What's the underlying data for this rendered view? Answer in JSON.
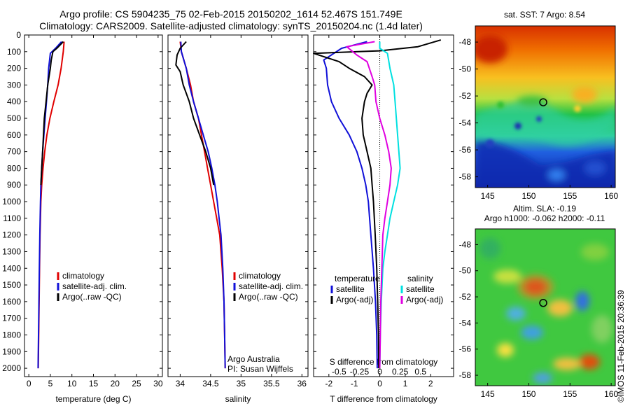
{
  "header": {
    "title_line1": "Argo profile: CS 5904235_75 02-Feb-2015 20150202_1614 52.467S 151.749E",
    "title_line2": "Climatology: CARS2009. Satellite-adjusted climatology: synTS_20150204.nc (1.4d later)"
  },
  "colors": {
    "climatology": "#e00000",
    "satellite": "#1010d8",
    "argo": "#000000",
    "sat_salinity": "#00e0e0",
    "argo_salinity": "#e000e0"
  },
  "chart_data": [
    {
      "id": "temperature",
      "type": "line",
      "xlabel": "temperature (deg C)",
      "ylabel": "",
      "xlim": [
        -1,
        31
      ],
      "ylim": [
        2050,
        0
      ],
      "xticks": [
        0,
        5,
        10,
        15,
        20,
        25,
        30
      ],
      "yticks": [
        0,
        100,
        200,
        300,
        400,
        500,
        600,
        700,
        800,
        900,
        1000,
        1100,
        1200,
        1300,
        1400,
        1500,
        1600,
        1700,
        1800,
        1900,
        2000
      ],
      "legend": [
        "climatology",
        "satellite-adj. clim.",
        "Argo(..raw -QC)"
      ],
      "series": [
        {
          "name": "climatology",
          "color": "#e00000",
          "points": [
            [
              8.2,
              40
            ],
            [
              8.0,
              100
            ],
            [
              7.5,
              200
            ],
            [
              6.8,
              300
            ],
            [
              5.8,
              400
            ],
            [
              4.9,
              500
            ],
            [
              4.2,
              600
            ],
            [
              3.7,
              700
            ],
            [
              3.3,
              800
            ],
            [
              3.0,
              900
            ],
            [
              2.8,
              1000
            ],
            [
              2.6,
              1200
            ],
            [
              2.5,
              1400
            ],
            [
              2.4,
              1600
            ],
            [
              2.3,
              1800
            ],
            [
              2.2,
              2000
            ]
          ]
        },
        {
          "name": "satellite-adj. clim.",
          "color": "#1010d8",
          "points": [
            [
              7.6,
              40
            ],
            [
              6.2,
              80
            ],
            [
              5.0,
              110
            ],
            [
              4.6,
              200
            ],
            [
              4.4,
              300
            ],
            [
              4.1,
              400
            ],
            [
              3.8,
              500
            ],
            [
              3.5,
              600
            ],
            [
              3.2,
              700
            ],
            [
              3.0,
              800
            ],
            [
              2.8,
              900
            ],
            [
              2.7,
              1000
            ],
            [
              2.55,
              1200
            ],
            [
              2.45,
              1400
            ],
            [
              2.35,
              1600
            ],
            [
              2.25,
              1800
            ],
            [
              2.15,
              2000
            ]
          ]
        },
        {
          "name": "Argo(..raw -QC)",
          "color": "#000000",
          "points": [
            [
              8.0,
              40
            ],
            [
              6.5,
              80
            ],
            [
              5.6,
              100
            ],
            [
              5.2,
              150
            ],
            [
              5.0,
              200
            ],
            [
              4.4,
              300
            ],
            [
              4.0,
              400
            ],
            [
              3.6,
              500
            ],
            [
              3.4,
              600
            ],
            [
              3.2,
              700
            ],
            [
              3.0,
              800
            ],
            [
              2.8,
              900
            ]
          ]
        }
      ]
    },
    {
      "id": "salinity",
      "type": "line",
      "xlabel": "salinity",
      "ylabel": "",
      "xlim": [
        33.8,
        36.1
      ],
      "ylim": [
        2050,
        0
      ],
      "xticks": [
        34,
        34.5,
        35,
        35.5,
        36
      ],
      "legend": [
        "climatology",
        "satellite-adj. clim.",
        "Argo(..raw -QC)"
      ],
      "annotation": [
        "Argo Australia",
        "PI: Susan Wijffels"
      ],
      "series": [
        {
          "name": "climatology",
          "color": "#e00000",
          "points": [
            [
              34.0,
              40
            ],
            [
              34.02,
              100
            ],
            [
              34.1,
              200
            ],
            [
              34.17,
              300
            ],
            [
              34.22,
              400
            ],
            [
              34.3,
              500
            ],
            [
              34.35,
              600
            ],
            [
              34.4,
              700
            ],
            [
              34.45,
              800
            ],
            [
              34.5,
              900
            ],
            [
              34.55,
              1000
            ],
            [
              34.6,
              1100
            ],
            [
              34.65,
              1200
            ],
            [
              34.69,
              1400
            ],
            [
              34.72,
              1600
            ],
            [
              34.73,
              1800
            ],
            [
              34.74,
              2000
            ]
          ]
        },
        {
          "name": "satellite-adj. clim.",
          "color": "#1010d8",
          "points": [
            [
              34.01,
              40
            ],
            [
              34.02,
              100
            ],
            [
              34.1,
              200
            ],
            [
              34.15,
              300
            ],
            [
              34.22,
              400
            ],
            [
              34.3,
              500
            ],
            [
              34.38,
              600
            ],
            [
              34.46,
              700
            ],
            [
              34.52,
              800
            ],
            [
              34.57,
              900
            ],
            [
              34.61,
              1000
            ],
            [
              34.64,
              1100
            ],
            [
              34.67,
              1200
            ],
            [
              34.7,
              1400
            ],
            [
              34.72,
              1600
            ],
            [
              34.73,
              1800
            ],
            [
              34.74,
              2000
            ]
          ]
        },
        {
          "name": "Argo(..raw -QC)",
          "color": "#000000",
          "points": [
            [
              34.1,
              40
            ],
            [
              34.0,
              80
            ],
            [
              33.95,
              120
            ],
            [
              33.93,
              180
            ],
            [
              34.0,
              220
            ],
            [
              34.05,
              300
            ],
            [
              34.1,
              350
            ],
            [
              34.15,
              400
            ],
            [
              34.22,
              500
            ],
            [
              34.32,
              600
            ],
            [
              34.42,
              700
            ],
            [
              34.5,
              800
            ],
            [
              34.55,
              900
            ]
          ]
        }
      ]
    },
    {
      "id": "difference",
      "type": "line",
      "xlabel": "T difference from climatology",
      "xlabel_top": "S difference from climatology",
      "ylabel": "",
      "xlim": [
        -2.6,
        2.9
      ],
      "ylim": [
        2050,
        0
      ],
      "xticks": [
        -2,
        -1,
        0,
        1,
        2
      ],
      "xticks_top": [
        "-0.5",
        "-0.25",
        "0",
        "0.25",
        "0.5"
      ],
      "legend": {
        "temperature": "temperature",
        "salinity": "salinity",
        "labels": [
          "satellite",
          "Argo(-adj)",
          "satellite",
          "Argo(-adj)"
        ]
      },
      "series": [
        {
          "name": "satellite",
          "color": "#1010d8",
          "points": [
            [
              -0.5,
              40
            ],
            [
              -1.5,
              80
            ],
            [
              -2.2,
              150
            ],
            [
              -2.1,
              200
            ],
            [
              -2.05,
              300
            ],
            [
              -1.9,
              400
            ],
            [
              -1.6,
              500
            ],
            [
              -1.2,
              600
            ],
            [
              -0.9,
              700
            ],
            [
              -0.7,
              800
            ],
            [
              -0.55,
              900
            ],
            [
              -0.45,
              1000
            ],
            [
              -0.35,
              1200
            ],
            [
              -0.25,
              1400
            ],
            [
              -0.17,
              1600
            ],
            [
              -0.12,
              1800
            ],
            [
              -0.1,
              2000
            ]
          ]
        },
        {
          "name": "Argo(-adj)",
          "color": "#000000",
          "points": [
            [
              2.4,
              30
            ],
            [
              1.5,
              70
            ],
            [
              0.0,
              95
            ],
            [
              -2.6,
              110
            ],
            [
              -1.6,
              160
            ],
            [
              -1.2,
              200
            ],
            [
              -0.6,
              250
            ],
            [
              -0.3,
              300
            ],
            [
              -0.5,
              350
            ],
            [
              -0.6,
              400
            ],
            [
              -0.7,
              500
            ],
            [
              -0.65,
              600
            ],
            [
              -0.5,
              700
            ],
            [
              -0.35,
              800
            ],
            [
              -0.3,
              900
            ],
            [
              -0.25,
              1000
            ],
            [
              -0.18,
              1200
            ],
            [
              -0.12,
              1400
            ],
            [
              -0.08,
              1600
            ],
            [
              -0.05,
              1800
            ],
            [
              -0.04,
              2000
            ]
          ]
        },
        {
          "name": "satellite",
          "color": "#00e0e0",
          "points": [
            [
              0.0,
              40
            ],
            [
              0.0,
              80
            ],
            [
              0.3,
              110
            ],
            [
              0.4,
              200
            ],
            [
              0.55,
              300
            ],
            [
              0.6,
              400
            ],
            [
              0.65,
              500
            ],
            [
              0.7,
              600
            ],
            [
              0.75,
              700
            ],
            [
              0.8,
              800
            ],
            [
              0.7,
              900
            ],
            [
              0.55,
              1000
            ],
            [
              0.4,
              1100
            ],
            [
              0.3,
              1200
            ],
            [
              0.2,
              1300
            ],
            [
              0.12,
              1400
            ],
            [
              0.06,
              1600
            ],
            [
              0.02,
              1800
            ],
            [
              0.0,
              2000
            ]
          ]
        },
        {
          "name": "Argo(-adj)",
          "color": "#e000e0",
          "points": [
            [
              -0.2,
              40
            ],
            [
              -1.3,
              70
            ],
            [
              -0.9,
              120
            ],
            [
              -0.5,
              160
            ],
            [
              -0.3,
              250
            ],
            [
              -0.2,
              300
            ],
            [
              -0.15,
              400
            ],
            [
              0.0,
              500
            ],
            [
              0.2,
              600
            ],
            [
              0.35,
              700
            ],
            [
              0.45,
              800
            ],
            [
              0.4,
              900
            ],
            [
              0.3,
              1000
            ],
            [
              0.2,
              1100
            ],
            [
              0.12,
              1200
            ],
            [
              0.08,
              1400
            ],
            [
              0.04,
              1600
            ],
            [
              0.02,
              1800
            ],
            [
              0.0,
              2000
            ]
          ]
        }
      ]
    },
    {
      "id": "sst_map",
      "type": "heatmap",
      "title": "sat. SST: 7 Argo: 8.54",
      "xlim": [
        143.5,
        160.5
      ],
      "ylim": [
        -58.8,
        -46.8
      ],
      "xticks": [
        145,
        150,
        155,
        160
      ],
      "yticks": [
        -48,
        -50,
        -52,
        -54,
        -56,
        -58
      ],
      "float_position": [
        151.749,
        -52.467
      ]
    },
    {
      "id": "sla_map",
      "type": "heatmap",
      "title_line1": "Altim. SLA: -0.19",
      "title_line2": "Argo h1000: -0.062 h2000: -0.11",
      "xlim": [
        143.5,
        160.5
      ],
      "ylim": [
        -58.8,
        -46.8
      ],
      "xticks": [
        145,
        150,
        155,
        160
      ],
      "yticks": [
        -48,
        -50,
        -52,
        -54,
        -56,
        -58
      ],
      "float_position": [
        151.749,
        -52.467
      ]
    }
  ],
  "credit": "©IMOS 11-Feb-2015 20:36:39"
}
